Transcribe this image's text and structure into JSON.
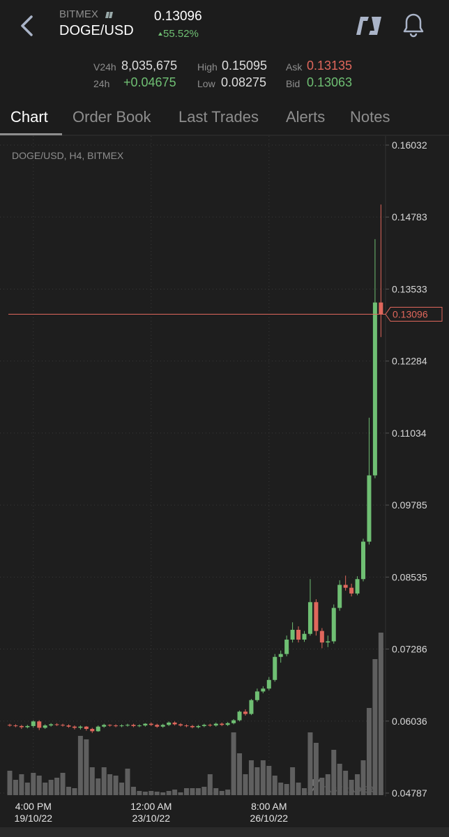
{
  "header": {
    "exchange": "BITMEX",
    "pair": "DOGE/USD",
    "price": "0.13096",
    "change": "55.52%"
  },
  "stats": {
    "v24h_label": "V24h",
    "v24h": "8,035,675",
    "change24_label": "24h",
    "change24": "+0.04675",
    "high_label": "High",
    "high": "0.15095",
    "low_label": "Low",
    "low": "0.08275",
    "ask_label": "Ask",
    "ask": "0.13135",
    "bid_label": "Bid",
    "bid": "0.13063"
  },
  "tabs": [
    "Chart",
    "Order Book",
    "Last Trades",
    "Alerts",
    "Notes"
  ],
  "chart_data": {
    "type": "candlestick",
    "title": "DOGE/USD, H4, BITMEX",
    "watermark": "TABTRADER",
    "up_color": "#6fbf73",
    "down_color": "#e0675c",
    "volume_color": "#5f5f5f",
    "grid": true,
    "categories": [
      null,
      null,
      null,
      null,
      "4:00 PM\n19/10/22",
      null,
      null,
      null,
      null,
      null,
      null,
      null,
      null,
      null,
      null,
      null,
      null,
      null,
      null,
      null,
      null,
      null,
      null,
      null,
      "12:00 AM\n23/10/22",
      null,
      null,
      null,
      null,
      null,
      null,
      null,
      null,
      null,
      null,
      null,
      null,
      null,
      null,
      null,
      null,
      null,
      null,
      null,
      "8:00 AM\n26/10/22",
      null,
      null,
      null,
      null,
      null,
      null,
      null,
      null,
      null,
      null,
      null,
      null,
      null,
      null,
      null,
      null,
      null,
      null,
      null
    ],
    "open": [
      0.0597,
      0.0596,
      0.0595,
      0.0593,
      0.0595,
      0.0603,
      0.0592,
      0.0596,
      0.0598,
      0.0597,
      0.0596,
      0.0594,
      0.0592,
      0.0594,
      0.059,
      0.0586,
      0.0594,
      0.0597,
      0.0596,
      0.0595,
      0.0596,
      0.0597,
      0.0595,
      0.0596,
      0.0599,
      0.0597,
      0.0594,
      0.0597,
      0.0601,
      0.0598,
      0.0596,
      0.0595,
      0.0593,
      0.0595,
      0.0597,
      0.0596,
      0.0599,
      0.0597,
      0.06,
      0.0605,
      0.062,
      0.0616,
      0.064,
      0.0655,
      0.066,
      0.0675,
      0.0715,
      0.072,
      0.0745,
      0.0762,
      0.0745,
      0.0755,
      0.081,
      0.076,
      0.074,
      0.0742,
      0.08,
      0.084,
      0.0835,
      0.0825,
      0.085,
      0.0915,
      0.103,
      0.133
    ],
    "high": [
      0.0599,
      0.0598,
      0.0597,
      0.0597,
      0.0605,
      0.0605,
      0.0598,
      0.06,
      0.06,
      0.0599,
      0.0598,
      0.0596,
      0.0596,
      0.0595,
      0.0592,
      0.0596,
      0.0599,
      0.0598,
      0.0598,
      0.0598,
      0.0599,
      0.0599,
      0.0598,
      0.06,
      0.0601,
      0.0599,
      0.0599,
      0.0603,
      0.0603,
      0.06,
      0.0598,
      0.0597,
      0.0597,
      0.0599,
      0.0599,
      0.0601,
      0.0601,
      0.0602,
      0.0607,
      0.0622,
      0.0624,
      0.0642,
      0.066,
      0.0664,
      0.068,
      0.072,
      0.0726,
      0.0752,
      0.0775,
      0.0768,
      0.076,
      0.085,
      0.0815,
      0.0765,
      0.0752,
      0.0806,
      0.0848,
      0.0856,
      0.0842,
      0.0855,
      0.092,
      0.113,
      0.144,
      0.15
    ],
    "low": [
      0.0594,
      0.0593,
      0.059,
      0.0591,
      0.0592,
      0.0588,
      0.059,
      0.0594,
      0.0595,
      0.0594,
      0.0592,
      0.0589,
      0.0589,
      0.0587,
      0.0583,
      0.0585,
      0.0592,
      0.0594,
      0.0593,
      0.0593,
      0.0594,
      0.0593,
      0.0593,
      0.0594,
      0.0595,
      0.0592,
      0.0592,
      0.0595,
      0.0596,
      0.0594,
      0.0593,
      0.0591,
      0.0591,
      0.0593,
      0.0594,
      0.0594,
      0.0595,
      0.0595,
      0.0598,
      0.0603,
      0.0613,
      0.0614,
      0.0637,
      0.0652,
      0.0657,
      0.0672,
      0.0705,
      0.0716,
      0.074,
      0.074,
      0.0741,
      0.0752,
      0.0752,
      0.073,
      0.0732,
      0.0738,
      0.0795,
      0.083,
      0.082,
      0.0822,
      0.0846,
      0.091,
      0.1025,
      0.127
    ],
    "close": [
      0.0596,
      0.0595,
      0.0593,
      0.0595,
      0.0603,
      0.0592,
      0.0596,
      0.0598,
      0.0597,
      0.0596,
      0.0594,
      0.0592,
      0.0594,
      0.059,
      0.0586,
      0.0594,
      0.0597,
      0.0596,
      0.0595,
      0.0596,
      0.0597,
      0.0595,
      0.0596,
      0.0599,
      0.0597,
      0.0594,
      0.0597,
      0.0601,
      0.0598,
      0.0596,
      0.0595,
      0.0593,
      0.0595,
      0.0597,
      0.0596,
      0.0599,
      0.0597,
      0.06,
      0.0605,
      0.062,
      0.0616,
      0.064,
      0.0655,
      0.066,
      0.0675,
      0.0715,
      0.072,
      0.0745,
      0.0762,
      0.0745,
      0.0755,
      0.081,
      0.076,
      0.074,
      0.0742,
      0.08,
      0.084,
      0.0835,
      0.0825,
      0.085,
      0.0915,
      0.103,
      0.133,
      0.13096
    ],
    "volume": [
      35,
      22,
      30,
      18,
      32,
      28,
      18,
      22,
      25,
      32,
      12,
      10,
      85,
      80,
      40,
      24,
      40,
      30,
      28,
      18,
      38,
      12,
      6,
      5,
      6,
      5,
      4,
      6,
      8,
      4,
      10,
      10,
      10,
      12,
      30,
      10,
      6,
      8,
      90,
      60,
      30,
      50,
      40,
      50,
      42,
      28,
      18,
      16,
      40,
      18,
      10,
      90,
      75,
      25,
      30,
      65,
      45,
      35,
      22,
      30,
      50,
      125,
      195,
      233
    ],
    "last_price": 0.13096,
    "ylim": [
      0.04787,
      0.16032
    ],
    "yticks": [
      0.16032,
      0.14783,
      0.13533,
      0.12284,
      0.11034,
      0.09785,
      0.08535,
      0.07286,
      0.06036,
      0.04787
    ]
  }
}
